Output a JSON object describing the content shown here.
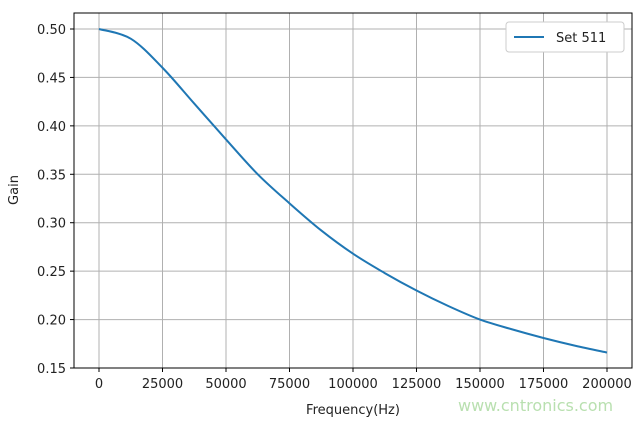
{
  "chart_data": {
    "type": "line",
    "title": "",
    "xlabel": "Frequency(Hz)",
    "ylabel": "Gain",
    "xlim": [
      -10000,
      210000
    ],
    "ylim": [
      0.15,
      0.517
    ],
    "xticks": [
      0,
      25000,
      50000,
      75000,
      100000,
      125000,
      150000,
      175000,
      200000
    ],
    "yticks": [
      0.15,
      0.2,
      0.25,
      0.3,
      0.35,
      0.4,
      0.45,
      0.5
    ],
    "ytick_labels": [
      "0.15",
      "0.20",
      "0.25",
      "0.30",
      "0.35",
      "0.40",
      "0.45",
      "0.50"
    ],
    "grid": true,
    "legend": "top-right",
    "series": [
      {
        "name": "Set 511",
        "color": "#1f77b4",
        "x": [
          0,
          12500,
          25000,
          37500,
          50000,
          62500,
          75000,
          87500,
          100000,
          112500,
          125000,
          137500,
          150000,
          162500,
          175000,
          187500,
          200000
        ],
        "y": [
          0.5,
          0.49,
          0.46,
          0.423,
          0.386,
          0.35,
          0.32,
          0.292,
          0.268,
          0.248,
          0.23,
          0.214,
          0.2,
          0.19,
          0.181,
          0.173,
          0.166
        ]
      }
    ]
  },
  "watermark": "www.cntronics.com"
}
